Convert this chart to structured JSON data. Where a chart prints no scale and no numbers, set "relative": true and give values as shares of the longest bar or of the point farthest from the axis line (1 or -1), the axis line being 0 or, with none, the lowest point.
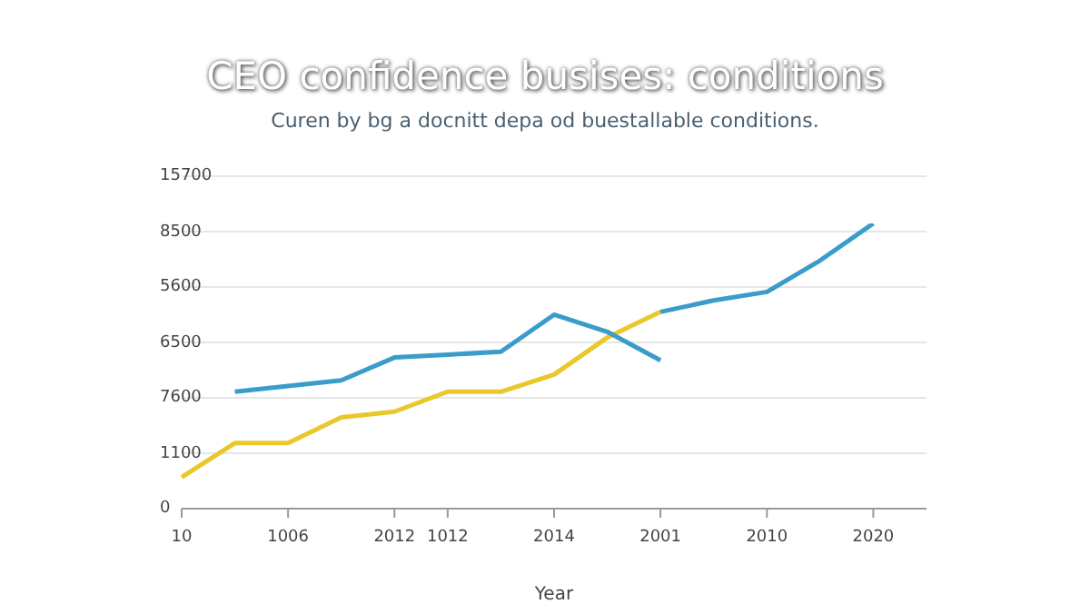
{
  "chart_data": {
    "type": "line",
    "title": "CEO confidence busises: conditions",
    "subtitle": "Curen by bg a docnitt depa od buestallable conditions.",
    "xlabel": "Year",
    "annotations": [
      "15700",
      "8500",
      "5600",
      "6500",
      "7600",
      "1100",
      "0"
    ],
    "categories": [
      "10",
      null,
      "1006",
      null,
      "2012",
      "1012",
      null,
      "2014",
      null,
      "2001",
      null,
      "2010",
      null,
      "2020",
      null
    ],
    "relative": true,
    "grid": "y",
    "marker": "none",
    "line_style": "solid",
    "series": [
      {
        "color": "#e8c82a",
        "values": [
          0.11,
          0.23,
          0.23,
          0.32,
          0.34,
          0.41,
          0.41,
          0.47,
          0.6,
          0.69,
          null,
          null,
          null,
          null,
          null
        ]
      },
      {
        "color": "#3a9cc8",
        "values": [
          null,
          0.41,
          0.43,
          0.45,
          0.53,
          0.54,
          0.55,
          0.68,
          0.62,
          0.52,
          null,
          null,
          null,
          null,
          null
        ]
      },
      {
        "color": "#3a9cc8",
        "values": [
          null,
          null,
          null,
          null,
          null,
          null,
          null,
          null,
          null,
          0.69,
          0.73,
          0.76,
          0.87,
          1.0,
          null
        ]
      }
    ]
  }
}
